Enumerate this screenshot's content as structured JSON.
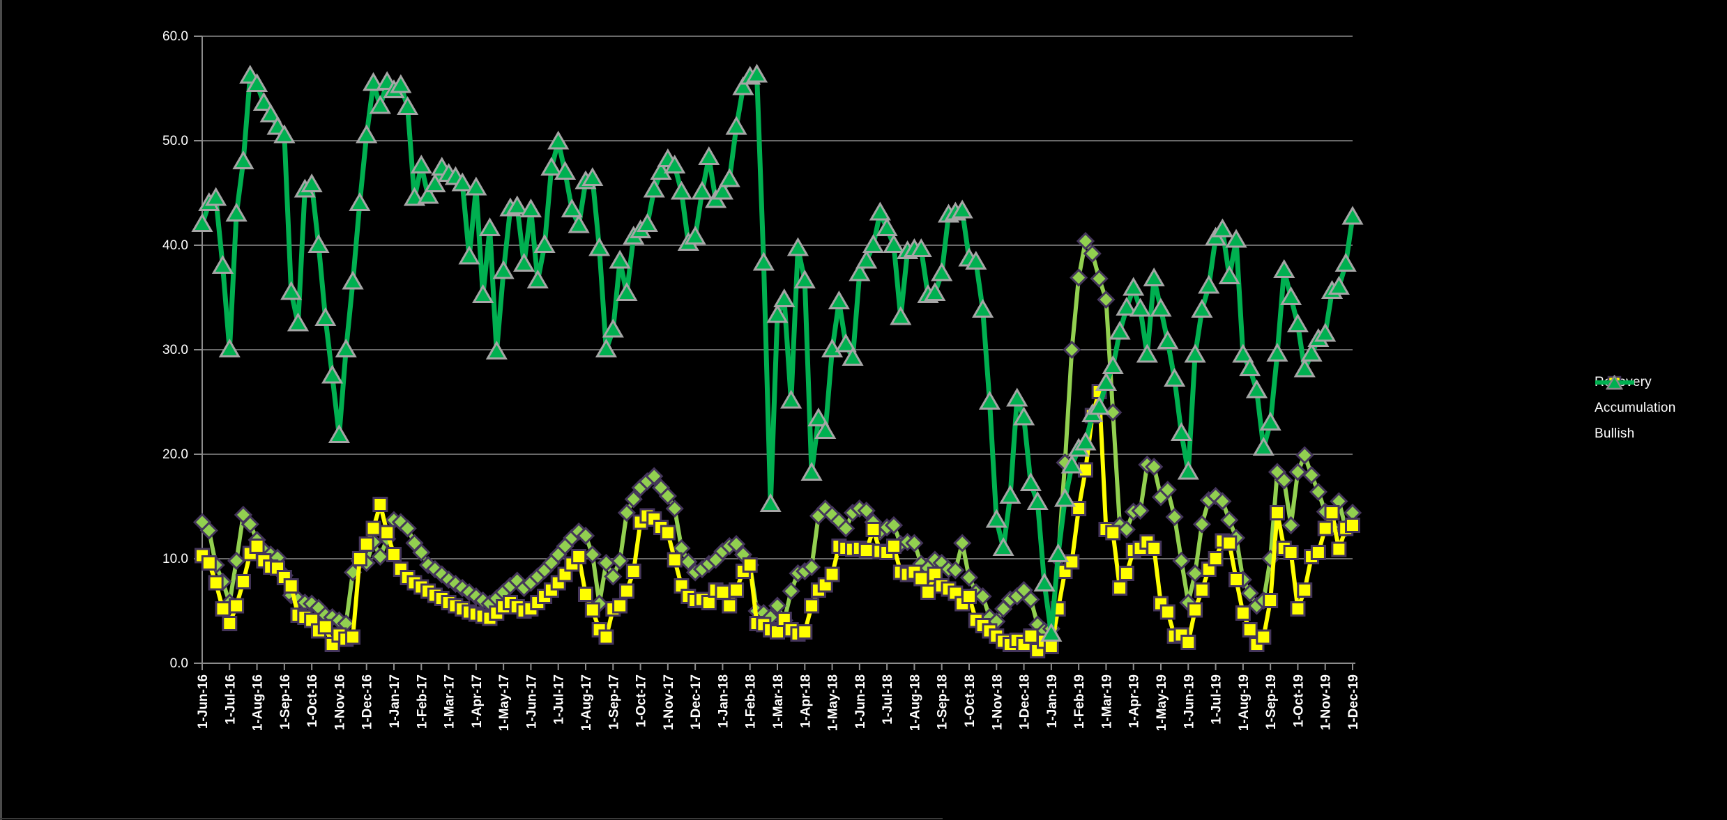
{
  "chart_data": {
    "type": "line",
    "title": "",
    "xlabel": "",
    "ylabel": "",
    "ylim": [
      0,
      60
    ],
    "grid": true,
    "legend_position": "right",
    "background": "#000000",
    "gridline_color": "#8c8c8c",
    "axis_text_color": "#ffffff",
    "y_tick_labels": [
      "0.0",
      "10.0",
      "20.0",
      "30.0",
      "40.0",
      "50.0",
      "60.0"
    ],
    "x_tick_labels": [
      "1-Jun-16",
      "1-Jul-16",
      "1-Aug-16",
      "1-Sep-16",
      "1-Oct-16",
      "1-Nov-16",
      "1-Dec-16",
      "1-Jan-17",
      "1-Feb-17",
      "1-Mar-17",
      "1-Apr-17",
      "1-May-17",
      "1-Jun-17",
      "1-Jul-17",
      "1-Aug-17",
      "1-Sep-17",
      "1-Oct-17",
      "1-Nov-17",
      "1-Dec-17",
      "1-Jan-18",
      "1-Feb-18",
      "1-Mar-18",
      "1-Apr-18",
      "1-May-18",
      "1-Jun-18",
      "1-Jul-18",
      "1-Aug-18",
      "1-Sep-18",
      "1-Oct-18",
      "1-Nov-18",
      "1-Dec-18",
      "1-Jan-19",
      "1-Feb-19",
      "1-Mar-19",
      "1-Apr-19",
      "1-May-19",
      "1-Jun-19",
      "1-Jul-19",
      "1-Aug-19",
      "1-Sep-19",
      "1-Oct-19",
      "1-Nov-19",
      "1-Dec-19"
    ],
    "points_per_month": 4,
    "series": [
      {
        "name": "Recovery",
        "marker": "diamond",
        "color": "#92D050",
        "marker_fill": "#92D050",
        "marker_border": "#44355B",
        "values": [
          13.5,
          12.7,
          9.4,
          7.8,
          5.8,
          9.8,
          14.2,
          13.3,
          11.8,
          10.8,
          10.4,
          10.1,
          8.4,
          6.5,
          6.1,
          5.8,
          5.7,
          5.3,
          4.6,
          4.4,
          4.1,
          3.8,
          8.7,
          9.8,
          9.6,
          11.6,
          10.2,
          11.9,
          13.7,
          13.5,
          12.9,
          11.5,
          10.6,
          9.4,
          9,
          8.5,
          8,
          7.6,
          7.2,
          6.8,
          6.4,
          6,
          5.7,
          6.2,
          6.8,
          7.4,
          7.9,
          7.2,
          7.7,
          8.3,
          8.9,
          9.6,
          10.4,
          11.2,
          12,
          12.6,
          12.2,
          10.4,
          5.7,
          9.6,
          8.3,
          9.8,
          14.4,
          15.7,
          16.8,
          17.4,
          17.9,
          16.8,
          16,
          14.8,
          11,
          9.7,
          8.7,
          9,
          9.5,
          9.9,
          10.7,
          11.2,
          11.4,
          10.4,
          9.4,
          5,
          4.8,
          4.4,
          5.5,
          4.1,
          6.9,
          8.6,
          8.8,
          9.2,
          14.1,
          14.8,
          14.2,
          13.6,
          12.9,
          14.4,
          14.8,
          14.6,
          13.5,
          12.6,
          13,
          13.2,
          11.4,
          11.6,
          11.5,
          9.5,
          9.1,
          9.9,
          9.6,
          9,
          8.9,
          11.5,
          8.2,
          6.8,
          6.4,
          4.4,
          4,
          5.2,
          6.1,
          6.4,
          7,
          6.1,
          3.7,
          3.1,
          3.3,
          10,
          19.2,
          30,
          36.9,
          40.4,
          39.2,
          36.8,
          34.8,
          24,
          13.2,
          12.8,
          14.5,
          14.6,
          19,
          18.8,
          15.9,
          16.6,
          14,
          9.8,
          5.8,
          8.6,
          13.3,
          15.6,
          16,
          15.5,
          13.7,
          12,
          8,
          6.7,
          5.5,
          6,
          10,
          18.3,
          17.5,
          13.2,
          18.3,
          19.9,
          18,
          16.4,
          14.5,
          13,
          15.5,
          12.9,
          14.4
        ]
      },
      {
        "name": "Accumulation",
        "marker": "square",
        "color": "#FFFF00",
        "marker_fill": "#FFFF00",
        "marker_border": "#44355B",
        "values": [
          10.3,
          9.6,
          7.7,
          5.2,
          3.8,
          5.5,
          7.8,
          10.5,
          11.2,
          9.8,
          9.2,
          9.1,
          8.2,
          7.4,
          4.6,
          4.4,
          4.1,
          3.1,
          3.5,
          1.8,
          2.7,
          2.3,
          2.5,
          10,
          11.4,
          12.9,
          15.2,
          12.5,
          10.4,
          9,
          8.2,
          7.7,
          7.3,
          6.9,
          6.5,
          6.2,
          5.8,
          5.5,
          5.2,
          4.9,
          4.7,
          4.5,
          4.3,
          4.8,
          5.4,
          5.8,
          5.4,
          5,
          5.2,
          5.8,
          6.4,
          7,
          7.7,
          8.5,
          9.5,
          10.2,
          6.6,
          5.1,
          3.2,
          2.5,
          5.2,
          5.5,
          6.9,
          8.8,
          13.5,
          14.1,
          13.8,
          13,
          12.5,
          9.9,
          7.4,
          6.4,
          6,
          6.1,
          5.8,
          7,
          6.8,
          5.5,
          7,
          8.8,
          9.4,
          3.8,
          3.7,
          3.2,
          3,
          4.2,
          3.2,
          2.8,
          3,
          5.5,
          7,
          7.5,
          8.5,
          11.2,
          11,
          10.9,
          11,
          10.8,
          12.8,
          10.7,
          10.6,
          11.2,
          8.7,
          8.5,
          8.7,
          8.1,
          6.8,
          8.5,
          7.4,
          7.1,
          6.7,
          5.7,
          6.4,
          4.1,
          3.6,
          3.1,
          2.6,
          2.1,
          1.8,
          2.2,
          1.8,
          2.6,
          1.2,
          2.1,
          1.6,
          5.2,
          8.8,
          9.7,
          14.8,
          18.5,
          23.7,
          26,
          12.8,
          12.5,
          7.2,
          8.6,
          10.8,
          11,
          11.6,
          11,
          5.7,
          4.9,
          2.6,
          2.7,
          2,
          5.1,
          7,
          9,
          10,
          11.7,
          11.5,
          8,
          4.8,
          3.2,
          1.8,
          2.5,
          6,
          14.4,
          11,
          10.6,
          5.2,
          7,
          10.2,
          10.6,
          12.9,
          14.4,
          10.9,
          12.9,
          13.2
        ]
      },
      {
        "name": "Bullish",
        "marker": "triangle",
        "color": "#00B050",
        "marker_fill": "#00B050",
        "marker_border": "#A6A6A6",
        "values": [
          42,
          44,
          44.5,
          38,
          30,
          43,
          48,
          56.2,
          55.4,
          53.6,
          52.5,
          51.3,
          50.5,
          35.5,
          32.5,
          45.3,
          45.8,
          40,
          33,
          27.5,
          21.8,
          30,
          36.5,
          44,
          50.5,
          55.5,
          53.3,
          55.6,
          54.8,
          55.3,
          53.2,
          44.5,
          47.6,
          44.7,
          45.8,
          47.4,
          46.8,
          46.5,
          45.9,
          38.9,
          45.5,
          35.2,
          41.6,
          29.8,
          37.5,
          43.5,
          43.7,
          38.2,
          43.4,
          36.6,
          40,
          47.4,
          49.9,
          47,
          43.4,
          41.9,
          46.1,
          46.4,
          39.7,
          30,
          31.9,
          38.5,
          35.4,
          40.8,
          41.4,
          42,
          45.3,
          47,
          48.2,
          47.6,
          45.1,
          40.2,
          40.8,
          45.1,
          48.4,
          44.3,
          45.1,
          46.3,
          51.3,
          55.1,
          56.1,
          56.3,
          38.3,
          15.2,
          33.3,
          34.8,
          25.1,
          39.7,
          36.6,
          18.2,
          23.4,
          22.2,
          30,
          34.6,
          30.5,
          29.2,
          37.3,
          38.5,
          40,
          43.1,
          41.6,
          40,
          33.1,
          39.4,
          39.6,
          39.6,
          35.2,
          35.4,
          37.3,
          42.9,
          43.1,
          43.3,
          38.7,
          38.4,
          33.8,
          25,
          13.7,
          11,
          16,
          25.3,
          23.5,
          17.2,
          15.4,
          7.6,
          2.8,
          10.4,
          15.7,
          18.9,
          20.5,
          21.1,
          23.8,
          24.5,
          26.8,
          28.4,
          31.7,
          34,
          35.9,
          33.9,
          29.5,
          36.8,
          33.9,
          30.8,
          27.2,
          22,
          18.3,
          29.5,
          33.8,
          36.1,
          40.7,
          41.5,
          37,
          40.5,
          29.5,
          28.2,
          26.1,
          20.6,
          23,
          29.6,
          37.6,
          35,
          32.4,
          28.1,
          29.6,
          31,
          31.5,
          35.6,
          36,
          38.2,
          42.7
        ]
      }
    ]
  },
  "legend": {
    "items": [
      {
        "label": "Recovery"
      },
      {
        "label": "Accumulation"
      },
      {
        "label": "Bullish"
      }
    ]
  }
}
